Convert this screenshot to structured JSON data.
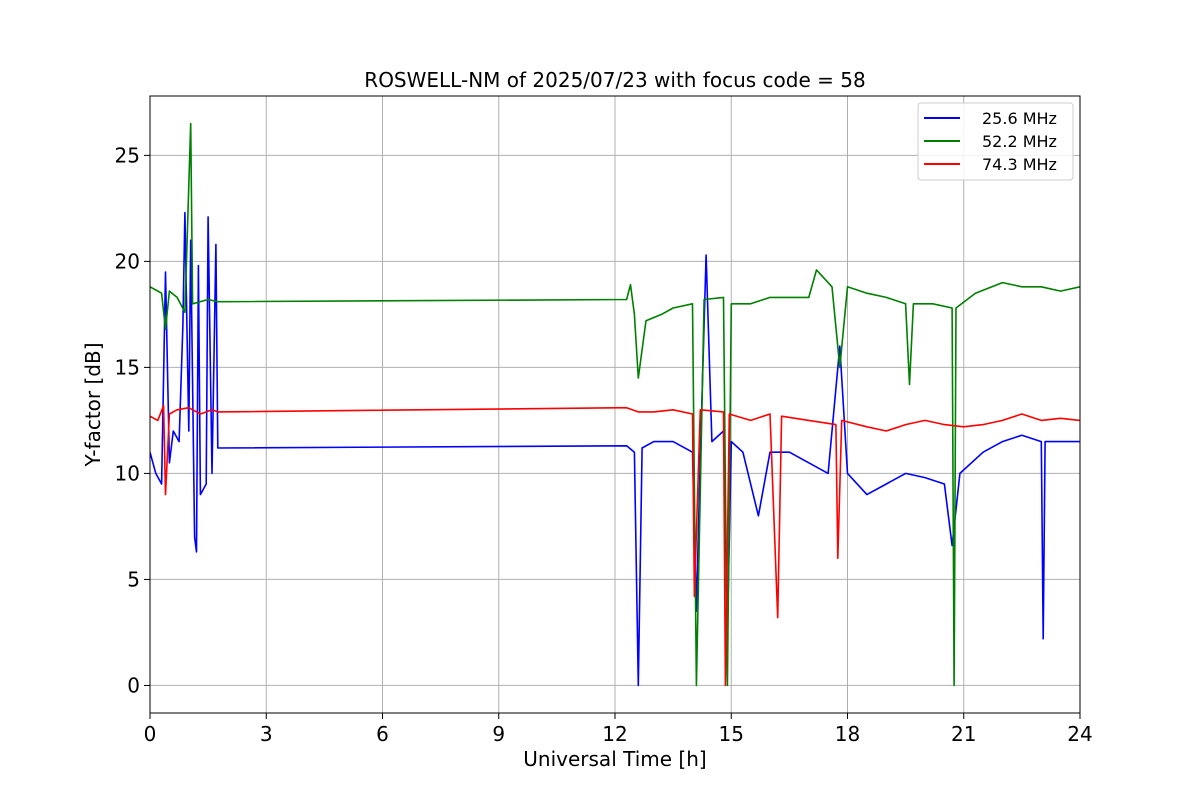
{
  "chart_data": {
    "type": "line",
    "title": "ROSWELL-NM of 2025/07/23 with focus code = 58",
    "xlabel": "Universal Time [h]",
    "ylabel": "Y-factor [dB]",
    "xlim": [
      0,
      24
    ],
    "ylim": [
      -1.3,
      27.8
    ],
    "xticks": [
      0,
      3,
      6,
      9,
      12,
      15,
      18,
      21,
      24
    ],
    "yticks": [
      0,
      5,
      10,
      15,
      20,
      25
    ],
    "grid": true,
    "legend_position": "top-right",
    "series": [
      {
        "name": "25.6 MHz",
        "color": "#0000ff",
        "points": [
          [
            0.0,
            11.0
          ],
          [
            0.15,
            10.0
          ],
          [
            0.3,
            9.5
          ],
          [
            0.4,
            19.5
          ],
          [
            0.5,
            10.5
          ],
          [
            0.6,
            12.0
          ],
          [
            0.75,
            11.5
          ],
          [
            0.85,
            17.0
          ],
          [
            0.9,
            22.3
          ],
          [
            1.0,
            12.0
          ],
          [
            1.05,
            21.0
          ],
          [
            1.15,
            7.0
          ],
          [
            1.2,
            6.3
          ],
          [
            1.25,
            19.8
          ],
          [
            1.3,
            9.0
          ],
          [
            1.45,
            9.5
          ],
          [
            1.5,
            22.1
          ],
          [
            1.6,
            10.0
          ],
          [
            1.7,
            20.8
          ],
          [
            1.75,
            11.2
          ],
          [
            12.3,
            11.3
          ],
          [
            12.5,
            11.0
          ],
          [
            12.6,
            0.0
          ],
          [
            12.7,
            11.2
          ],
          [
            13.0,
            11.5
          ],
          [
            13.5,
            11.5
          ],
          [
            14.0,
            11.0
          ],
          [
            14.1,
            3.5
          ],
          [
            14.2,
            10.8
          ],
          [
            14.35,
            20.3
          ],
          [
            14.5,
            11.5
          ],
          [
            14.8,
            12.0
          ],
          [
            14.9,
            2.5
          ],
          [
            15.0,
            11.5
          ],
          [
            15.3,
            11.0
          ],
          [
            15.7,
            8.0
          ],
          [
            16.0,
            11.0
          ],
          [
            16.5,
            11.0
          ],
          [
            17.0,
            10.5
          ],
          [
            17.5,
            10.0
          ],
          [
            17.8,
            16.0
          ],
          [
            18.0,
            10.0
          ],
          [
            18.5,
            9.0
          ],
          [
            19.0,
            9.5
          ],
          [
            19.5,
            10.0
          ],
          [
            20.0,
            9.8
          ],
          [
            20.5,
            9.5
          ],
          [
            20.7,
            6.6
          ],
          [
            20.9,
            10.0
          ],
          [
            21.5,
            11.0
          ],
          [
            22.0,
            11.5
          ],
          [
            22.5,
            11.8
          ],
          [
            23.0,
            11.5
          ],
          [
            23.05,
            2.2
          ],
          [
            23.1,
            11.5
          ],
          [
            23.5,
            11.5
          ],
          [
            24.0,
            11.5
          ]
        ]
      },
      {
        "name": "52.2 MHz",
        "color": "#008000",
        "points": [
          [
            0.0,
            18.8
          ],
          [
            0.3,
            18.5
          ],
          [
            0.4,
            16.8
          ],
          [
            0.5,
            18.6
          ],
          [
            0.7,
            18.3
          ],
          [
            0.9,
            17.6
          ],
          [
            1.05,
            26.5
          ],
          [
            1.1,
            18.0
          ],
          [
            1.5,
            18.2
          ],
          [
            1.75,
            18.1
          ],
          [
            12.3,
            18.2
          ],
          [
            12.4,
            18.9
          ],
          [
            12.5,
            17.5
          ],
          [
            12.6,
            14.5
          ],
          [
            12.8,
            17.2
          ],
          [
            13.2,
            17.5
          ],
          [
            13.5,
            17.8
          ],
          [
            14.0,
            18.0
          ],
          [
            14.1,
            0.0
          ],
          [
            14.3,
            18.2
          ],
          [
            14.8,
            18.3
          ],
          [
            14.9,
            0.0
          ],
          [
            15.0,
            18.0
          ],
          [
            15.5,
            18.0
          ],
          [
            16.0,
            18.3
          ],
          [
            16.5,
            18.3
          ],
          [
            17.0,
            18.3
          ],
          [
            17.2,
            19.6
          ],
          [
            17.6,
            18.8
          ],
          [
            17.8,
            15.0
          ],
          [
            18.0,
            18.8
          ],
          [
            18.5,
            18.5
          ],
          [
            19.0,
            18.3
          ],
          [
            19.5,
            18.0
          ],
          [
            19.6,
            14.2
          ],
          [
            19.7,
            18.0
          ],
          [
            20.2,
            18.0
          ],
          [
            20.7,
            17.8
          ],
          [
            20.75,
            0.0
          ],
          [
            20.8,
            17.8
          ],
          [
            21.3,
            18.5
          ],
          [
            22.0,
            19.0
          ],
          [
            22.5,
            18.8
          ],
          [
            23.0,
            18.8
          ],
          [
            23.5,
            18.6
          ],
          [
            24.0,
            18.8
          ]
        ]
      },
      {
        "name": "74.3 MHz",
        "color": "#ff0000",
        "points": [
          [
            0.0,
            12.7
          ],
          [
            0.2,
            12.5
          ],
          [
            0.35,
            13.2
          ],
          [
            0.4,
            9.0
          ],
          [
            0.5,
            12.8
          ],
          [
            0.7,
            13.0
          ],
          [
            1.0,
            13.1
          ],
          [
            1.3,
            12.8
          ],
          [
            1.6,
            13.0
          ],
          [
            1.75,
            12.9
          ],
          [
            12.3,
            13.1
          ],
          [
            12.6,
            12.9
          ],
          [
            13.0,
            12.9
          ],
          [
            13.5,
            13.0
          ],
          [
            14.0,
            12.8
          ],
          [
            14.05,
            4.2
          ],
          [
            14.2,
            13.0
          ],
          [
            14.8,
            12.9
          ],
          [
            14.85,
            0.0
          ],
          [
            14.95,
            12.8
          ],
          [
            15.5,
            12.5
          ],
          [
            16.0,
            12.8
          ],
          [
            16.2,
            3.2
          ],
          [
            16.3,
            12.7
          ],
          [
            17.0,
            12.5
          ],
          [
            17.7,
            12.3
          ],
          [
            17.75,
            6.0
          ],
          [
            17.85,
            12.5
          ],
          [
            18.5,
            12.2
          ],
          [
            19.0,
            12.0
          ],
          [
            19.5,
            12.3
          ],
          [
            20.0,
            12.5
          ],
          [
            20.5,
            12.3
          ],
          [
            21.0,
            12.2
          ],
          [
            21.5,
            12.3
          ],
          [
            22.0,
            12.5
          ],
          [
            22.5,
            12.8
          ],
          [
            23.0,
            12.5
          ],
          [
            23.5,
            12.6
          ],
          [
            24.0,
            12.5
          ]
        ]
      }
    ]
  }
}
